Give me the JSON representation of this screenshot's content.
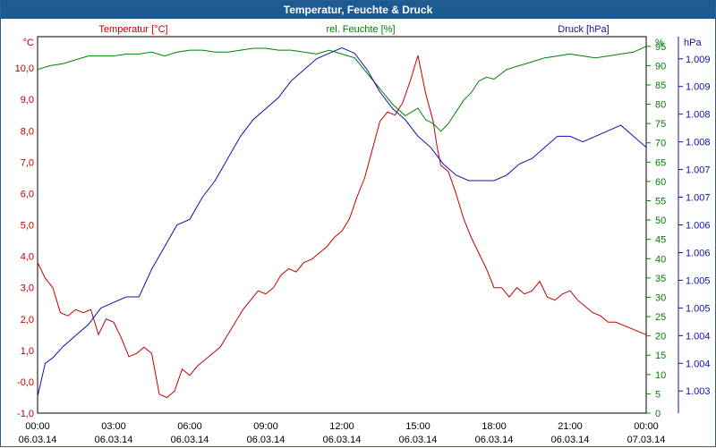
{
  "window": {
    "title": "Temperatur, Feuchte & Druck"
  },
  "colors": {
    "temperature": "#c00000",
    "humidity": "#008000",
    "pressure": "#1010a8",
    "axis_text": "#000000",
    "title_bar": "#1e5a92"
  },
  "chart_data": {
    "type": "line",
    "title": "Temperatur, Feuchte & Druck",
    "x_ticks": [
      {
        "time": "00:00",
        "date": "06.03.14"
      },
      {
        "time": "03:00",
        "date": "06.03.14"
      },
      {
        "time": "06:00",
        "date": "06.03.14"
      },
      {
        "time": "09:00",
        "date": "06.03.14"
      },
      {
        "time": "12:00",
        "date": "06.03.14"
      },
      {
        "time": "15:00",
        "date": "06.03.14"
      },
      {
        "time": "18:00",
        "date": "06.03.14"
      },
      {
        "time": "21:00",
        "date": "06.03.14"
      },
      {
        "time": "00:00",
        "date": "07.03.14"
      }
    ],
    "xlim_hours": [
      0,
      24
    ],
    "axes": {
      "left": {
        "unit": "°C",
        "label": "Temperatur [°C]",
        "ylim": [
          -1,
          11
        ],
        "tick_values": [
          -1,
          0,
          1,
          2,
          3,
          4,
          5,
          6,
          7,
          8,
          9,
          10
        ],
        "tick_labels": [
          "-1,0",
          "-0,0",
          "1,0",
          "2,0",
          "3,0",
          "4,0",
          "5,0",
          "6,0",
          "7,0",
          "8,0",
          "9,0",
          "10,0"
        ]
      },
      "right1": {
        "unit": "%",
        "label": "rel. Feuchte [%]",
        "ylim": [
          0,
          97.5
        ],
        "tick_values": [
          0,
          5,
          10,
          15,
          20,
          25,
          30,
          35,
          40,
          45,
          50,
          55,
          60,
          65,
          70,
          75,
          80,
          85,
          90,
          95
        ],
        "tick_labels": [
          "0",
          "5",
          "10",
          "15",
          "20",
          "25",
          "30",
          "35",
          "40",
          "45",
          "50",
          "55",
          "60",
          "65",
          "70",
          "75",
          "80",
          "85",
          "90",
          "95"
        ]
      },
      "right2": {
        "unit": "hPa",
        "label": "Druck [hPa]",
        "ylim": [
          1002.6,
          1009.4
        ],
        "tick_values": [
          1003,
          1003.5,
          1004,
          1004.5,
          1005,
          1005.5,
          1006,
          1006.5,
          1007,
          1007.5,
          1008,
          1008.5,
          1009
        ],
        "tick_labels": [
          "1.003",
          "1.004",
          "1.004",
          "1.005",
          "1.005",
          "1.006",
          "1.006",
          "1.007",
          "1.007",
          "1.008",
          "1.008",
          "1.009",
          "1.009"
        ]
      }
    },
    "series": [
      {
        "name": "Temperatur [°C]",
        "axis": "left",
        "x": [
          0,
          0.3,
          0.6,
          0.9,
          1.2,
          1.5,
          1.8,
          2.1,
          2.4,
          2.7,
          3.0,
          3.3,
          3.6,
          3.9,
          4.2,
          4.5,
          4.8,
          5.1,
          5.4,
          5.7,
          6.0,
          6.3,
          6.6,
          6.9,
          7.2,
          7.5,
          7.8,
          8.1,
          8.4,
          8.7,
          9.0,
          9.3,
          9.6,
          9.9,
          10.2,
          10.5,
          10.8,
          11.1,
          11.4,
          11.7,
          12.0,
          12.3,
          12.6,
          12.9,
          13.2,
          13.5,
          13.8,
          14.1,
          14.4,
          14.7,
          15.0,
          15.3,
          15.6,
          15.75,
          15.9,
          16.2,
          16.5,
          16.8,
          17.1,
          17.4,
          17.7,
          18.0,
          18.3,
          18.6,
          18.9,
          19.2,
          19.5,
          19.8,
          20.1,
          20.4,
          20.7,
          21.0,
          21.3,
          21.6,
          21.9,
          22.2,
          22.5,
          22.8,
          23.1,
          23.4,
          23.7,
          24.0
        ],
        "values": [
          3.8,
          3.3,
          3.0,
          2.2,
          2.1,
          2.3,
          2.2,
          2.3,
          1.5,
          2.0,
          1.9,
          1.4,
          0.8,
          0.9,
          1.1,
          0.9,
          -0.4,
          -0.5,
          -0.3,
          0.4,
          0.2,
          0.5,
          0.7,
          0.9,
          1.1,
          1.5,
          1.9,
          2.3,
          2.6,
          2.9,
          2.8,
          3.0,
          3.4,
          3.6,
          3.5,
          3.8,
          3.9,
          4.1,
          4.3,
          4.6,
          4.8,
          5.2,
          5.9,
          6.5,
          7.4,
          8.3,
          8.6,
          8.5,
          8.9,
          9.6,
          10.4,
          9.2,
          8.3,
          7.5,
          6.9,
          6.7,
          6.0,
          5.2,
          4.6,
          4.1,
          3.6,
          3.0,
          3.0,
          2.7,
          3.0,
          2.8,
          2.9,
          3.2,
          2.7,
          2.6,
          2.8,
          2.9,
          2.6,
          2.4,
          2.2,
          2.1,
          1.9,
          1.9,
          1.8,
          1.7,
          1.6,
          1.5
        ]
      },
      {
        "name": "rel. Feuchte [%]",
        "axis": "right1",
        "x": [
          0,
          0.5,
          1.0,
          1.5,
          2.0,
          2.5,
          3.0,
          3.5,
          4.0,
          4.5,
          5.0,
          5.5,
          6.0,
          6.5,
          7.0,
          7.5,
          8.0,
          8.5,
          9.0,
          9.5,
          10.0,
          10.5,
          11.0,
          11.5,
          12.0,
          12.5,
          13.0,
          13.5,
          14.0,
          14.5,
          15.0,
          15.3,
          15.6,
          15.9,
          16.2,
          16.5,
          16.8,
          17.1,
          17.4,
          17.7,
          18.0,
          18.5,
          19.0,
          19.5,
          20.0,
          20.5,
          21.0,
          21.5,
          22.0,
          22.5,
          23.0,
          23.5,
          24.0
        ],
        "values": [
          89,
          90,
          90.5,
          91.5,
          92.5,
          92.5,
          92.5,
          93,
          93,
          93.5,
          92.5,
          93.5,
          94,
          94,
          93.5,
          93.5,
          94,
          94.5,
          94.5,
          94,
          94,
          93.5,
          93,
          94,
          93,
          92,
          88,
          84,
          80,
          77,
          79,
          76,
          75,
          73,
          75,
          78,
          81,
          83,
          86,
          87,
          86.5,
          89,
          90,
          91,
          92,
          92.5,
          93,
          92.5,
          92,
          92.5,
          93,
          93.5,
          95
        ]
      },
      {
        "name": "Druck [hPa]",
        "axis": "right2",
        "x": [
          0,
          0.3,
          0.6,
          1.0,
          1.5,
          2.0,
          2.5,
          3.0,
          3.5,
          4.0,
          4.5,
          5.0,
          5.5,
          6.0,
          6.5,
          7.0,
          7.5,
          8.0,
          8.5,
          9.0,
          9.5,
          10.0,
          10.5,
          11.0,
          11.5,
          12.0,
          12.5,
          13.0,
          13.5,
          14.0,
          14.5,
          15.0,
          15.5,
          16.0,
          16.5,
          17.0,
          17.5,
          18.0,
          18.5,
          19.0,
          19.5,
          20.0,
          20.5,
          21.0,
          21.5,
          22.0,
          22.5,
          23.0,
          23.5,
          24.0
        ],
        "values": [
          1002.9,
          1003.5,
          1003.6,
          1003.8,
          1004.0,
          1004.2,
          1004.5,
          1004.6,
          1004.7,
          1004.7,
          1005.2,
          1005.6,
          1006.0,
          1006.1,
          1006.5,
          1006.8,
          1007.2,
          1007.6,
          1007.9,
          1008.1,
          1008.3,
          1008.6,
          1008.8,
          1009.0,
          1009.1,
          1009.2,
          1009.1,
          1008.8,
          1008.4,
          1008.1,
          1007.9,
          1007.6,
          1007.4,
          1007.1,
          1006.9,
          1006.8,
          1006.8,
          1006.8,
          1006.9,
          1007.1,
          1007.2,
          1007.4,
          1007.6,
          1007.6,
          1007.5,
          1007.6,
          1007.7,
          1007.8,
          1007.6,
          1007.4
        ]
      }
    ]
  }
}
